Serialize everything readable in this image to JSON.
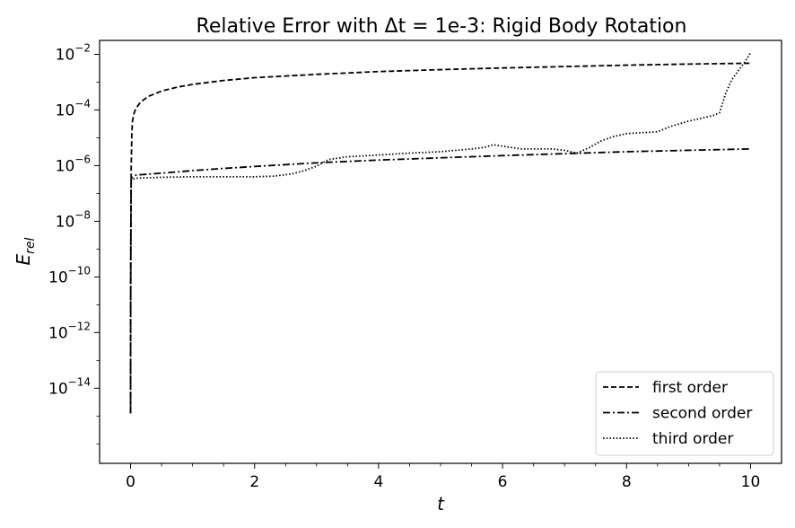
{
  "chart_data": {
    "type": "line",
    "title": "Relative Error with Δt = 1e-3: Rigid Body Rotation",
    "xlabel": "t",
    "ylabel": "E",
    "ylabel_subscript": "rel",
    "xscale": "linear",
    "yscale": "log",
    "xlim": [
      -0.5,
      10.5
    ],
    "ylim_log10": [
      -16.7,
      -1.5
    ],
    "xticks": [
      0,
      2,
      4,
      6,
      8,
      10
    ],
    "xtick_labels": [
      "0",
      "2",
      "4",
      "6",
      "8",
      "10"
    ],
    "yticks_exp": [
      -14,
      -12,
      -10,
      -8,
      -6,
      -4,
      -2
    ],
    "ytick_base": "10",
    "ytick_exponents": [
      "−14",
      "−12",
      "−10",
      "−8",
      "−6",
      "−4",
      "−2"
    ],
    "grid": false,
    "legend_position": "lower-right",
    "series": [
      {
        "name": "first order",
        "style": "dashed",
        "color": "#000000",
        "x": [
          0,
          0,
          0.001,
          0.002,
          0.005,
          0.01,
          0.02,
          0.03,
          0.05,
          0.08,
          0.1,
          0.15,
          0.2,
          0.3,
          0.5,
          0.75,
          1,
          1.5,
          2,
          3,
          4,
          5,
          6,
          7,
          8,
          9,
          10
        ],
        "log10_y": [
          -14.9,
          -14,
          -12,
          -10,
          -8,
          -6,
          -4.85,
          -4.4,
          -4.15,
          -3.98,
          -3.9,
          -3.75,
          -3.65,
          -3.5,
          -3.32,
          -3.18,
          -3.08,
          -2.94,
          -2.84,
          -2.72,
          -2.62,
          -2.55,
          -2.49,
          -2.44,
          -2.39,
          -2.35,
          -2.32
        ]
      },
      {
        "name": "second order",
        "style": "dashdot",
        "color": "#000000",
        "x": [
          0,
          0,
          0.001,
          0.002,
          0.005,
          0.01,
          0.05,
          0.1,
          0.2,
          0.5,
          1,
          1.5,
          2,
          3,
          4,
          5,
          6,
          7,
          8,
          9,
          10
        ],
        "log10_y": [
          -14.9,
          -14,
          -12,
          -10,
          -8,
          -6.45,
          -6.38,
          -6.33,
          -6.32,
          -6.27,
          -6.18,
          -6.1,
          -6.03,
          -5.9,
          -5.8,
          -5.72,
          -5.64,
          -5.57,
          -5.5,
          -5.45,
          -5.4
        ]
      },
      {
        "name": "third order",
        "style": "dotted",
        "color": "#000000",
        "x": [
          0,
          0,
          0.001,
          0.002,
          0.005,
          0.01,
          0.1,
          0.5,
          1,
          1.5,
          2,
          2.3,
          2.6,
          2.8,
          3,
          3.2,
          3.5,
          4,
          4.5,
          5,
          5.5,
          5.7,
          5.85,
          6,
          6.3,
          6.8,
          7,
          7.2,
          7.4,
          7.6,
          7.8,
          8,
          8.2,
          8.4,
          8.5,
          8.7,
          9,
          9.2,
          9.4,
          9.5,
          9.6,
          9.7,
          9.8,
          9.9,
          10
        ],
        "log10_y": [
          -14.9,
          -14,
          -12,
          -10,
          -8,
          -6.5,
          -6.45,
          -6.42,
          -6.4,
          -6.4,
          -6.4,
          -6.38,
          -6.3,
          -6.18,
          -6.02,
          -5.78,
          -5.68,
          -5.62,
          -5.55,
          -5.5,
          -5.4,
          -5.35,
          -5.25,
          -5.3,
          -5.4,
          -5.4,
          -5.45,
          -5.55,
          -5.35,
          -5.1,
          -4.95,
          -4.85,
          -4.82,
          -4.8,
          -4.78,
          -4.6,
          -4.4,
          -4.3,
          -4.2,
          -4.1,
          -3.4,
          -2.9,
          -2.6,
          -2.3,
          -1.95
        ]
      }
    ]
  }
}
